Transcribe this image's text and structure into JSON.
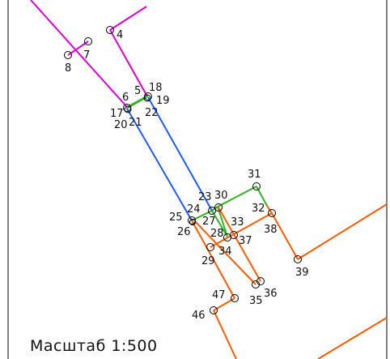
{
  "scale_label": "Масштаб 1:500",
  "colors": {
    "magenta": "#e000e0",
    "blue": "#1e5cff",
    "green": "#2fb51f",
    "orange": "#ff5a00",
    "frame": "#000000",
    "point": "#000000"
  },
  "points": [
    {
      "id": "4",
      "label": "4"
    },
    {
      "id": "7",
      "label": "7"
    },
    {
      "id": "8",
      "label": "8"
    },
    {
      "id": "5",
      "label": "5"
    },
    {
      "id": "18",
      "label": "18"
    },
    {
      "id": "19",
      "label": "19"
    },
    {
      "id": "22",
      "label": "22"
    },
    {
      "id": "6",
      "label": "6"
    },
    {
      "id": "17",
      "label": "17"
    },
    {
      "id": "20",
      "label": "20"
    },
    {
      "id": "21",
      "label": "21"
    },
    {
      "id": "31",
      "label": "31"
    },
    {
      "id": "23",
      "label": "23"
    },
    {
      "id": "30",
      "label": "30"
    },
    {
      "id": "32",
      "label": "32"
    },
    {
      "id": "24",
      "label": "24"
    },
    {
      "id": "25",
      "label": "25"
    },
    {
      "id": "27",
      "label": "27"
    },
    {
      "id": "26",
      "label": "26"
    },
    {
      "id": "33",
      "label": "33"
    },
    {
      "id": "38",
      "label": "38"
    },
    {
      "id": "28",
      "label": "28"
    },
    {
      "id": "37",
      "label": "37"
    },
    {
      "id": "34",
      "label": "34"
    },
    {
      "id": "29",
      "label": "29"
    },
    {
      "id": "39",
      "label": "39"
    },
    {
      "id": "47",
      "label": "47"
    },
    {
      "id": "36",
      "label": "36"
    },
    {
      "id": "35",
      "label": "35"
    },
    {
      "id": "46",
      "label": "46"
    }
  ]
}
